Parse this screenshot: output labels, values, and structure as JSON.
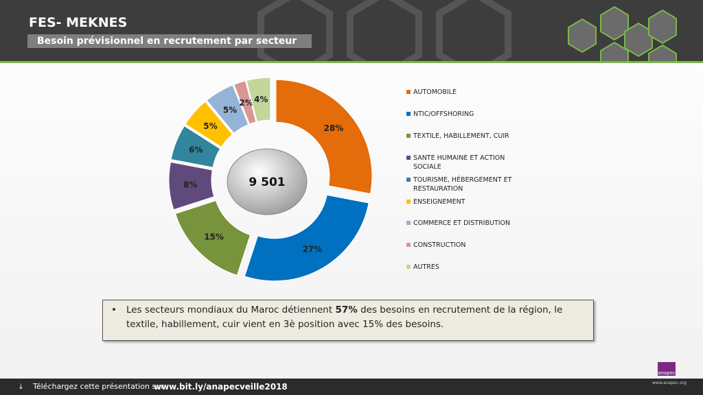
{
  "header": {
    "title": "FES- MEKNES",
    "subtitle": "Besoin prévisionnel en recrutement par secteur"
  },
  "chart_data": {
    "type": "donut",
    "center_label": "9 501",
    "categories": [
      "AUTOMOBILE",
      "NTIC/OFFSHORING",
      "TEXTILE, HABILLEMENT, CUIR",
      "SANTE HUMAINE ET ACTION SOCIALE",
      "TOURISME, HÉBERGEMENT ET RESTAURATION",
      "ENSEIGNEMENT",
      "COMMERCE ET DISTRIBUTION",
      "CONSTRUCTION",
      "AUTRES"
    ],
    "values": [
      28,
      27,
      15,
      8,
      6,
      5,
      5,
      2,
      4
    ],
    "value_labels": [
      "28%",
      "27%",
      "15%",
      "8%",
      "6%",
      "5%",
      "5%",
      "2%",
      "4%"
    ],
    "colors": [
      "#e46c0a",
      "#0070c0",
      "#77933c",
      "#604a7b",
      "#31859c",
      "#ffc000",
      "#95b3d7",
      "#d99694",
      "#c3d69b"
    ]
  },
  "note": {
    "parts": [
      "Les secteurs mondiaux du Maroc détiennent ",
      "57%",
      " des besoins en recrutement de la région, le textile, habillement, cuir vient en 3è position avec 15% des besoins."
    ]
  },
  "footer": {
    "text": "Téléchargez cette présentation sur",
    "link": "www.bit.ly/anapecveille2018",
    "logo": "anapec",
    "site": "www.anapec.org"
  }
}
